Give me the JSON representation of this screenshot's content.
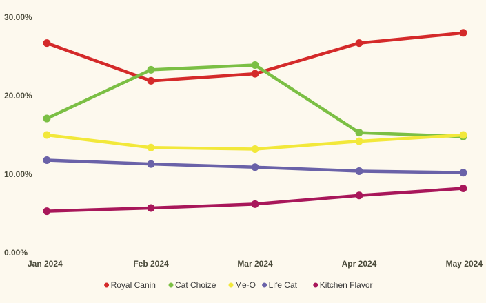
{
  "chart_data": {
    "type": "line",
    "title": "",
    "xlabel": "",
    "ylabel": "",
    "categories": [
      "Jan 2024",
      "Feb 2024",
      "Mar 2024",
      "Apr 2024",
      "May 2024"
    ],
    "y_ticks": [
      "0.00%",
      "10.00%",
      "20.00%",
      "30.00%"
    ],
    "ylim": [
      0,
      30
    ],
    "grid": false,
    "legend_position": "bottom",
    "series": [
      {
        "name": "Royal Canin",
        "color": "#d42a2a",
        "values": [
          26.7,
          21.9,
          22.8,
          26.7,
          28.0
        ]
      },
      {
        "name": "Cat Choize",
        "color": "#7bbf44",
        "values": [
          17.1,
          23.3,
          23.9,
          15.3,
          14.8
        ]
      },
      {
        "name": "Me-O",
        "color": "#f2e83a",
        "values": [
          15.0,
          13.4,
          13.2,
          14.2,
          15.0
        ]
      },
      {
        "name": "Life Cat",
        "color": "#6a62a8",
        "values": [
          11.8,
          11.3,
          10.9,
          10.4,
          10.2
        ]
      },
      {
        "name": "Kitchen Flavor",
        "color": "#a8175a",
        "values": [
          5.3,
          5.7,
          6.2,
          7.3,
          8.2
        ]
      }
    ]
  }
}
